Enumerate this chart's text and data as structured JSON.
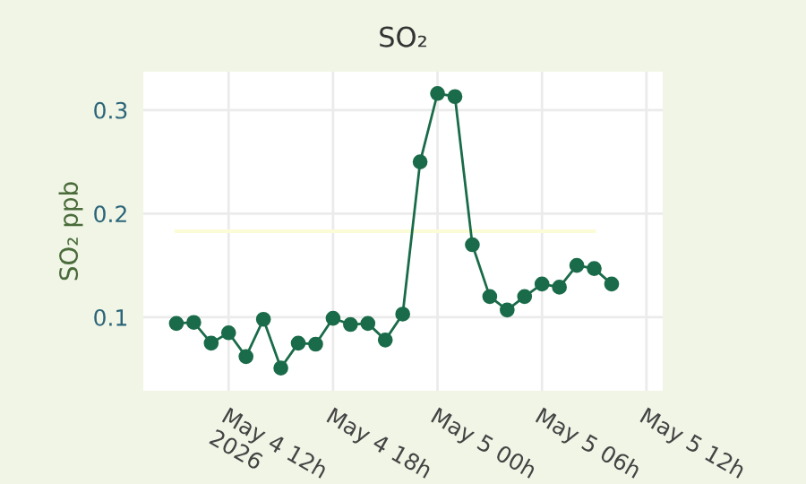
{
  "chart_data": {
    "type": "line",
    "title": "SO₂",
    "ylabel": "SO₂ ppb",
    "x": [
      "2026-05-04T09:00",
      "2026-05-04T10:00",
      "2026-05-04T11:00",
      "2026-05-04T12:00",
      "2026-05-04T13:00",
      "2026-05-04T14:00",
      "2026-05-04T15:00",
      "2026-05-04T16:00",
      "2026-05-04T17:00",
      "2026-05-04T18:00",
      "2026-05-04T19:00",
      "2026-05-04T20:00",
      "2026-05-04T21:00",
      "2026-05-04T22:00",
      "2026-05-04T23:00",
      "2026-05-05T00:00",
      "2026-05-05T01:00",
      "2026-05-05T02:00",
      "2026-05-05T03:00",
      "2026-05-05T04:00",
      "2026-05-05T05:00",
      "2026-05-05T06:00",
      "2026-05-05T07:00",
      "2026-05-05T08:00",
      "2026-05-05T09:00",
      "2026-05-05T10:00"
    ],
    "series": [
      {
        "color": "#1a6b4a",
        "marker": "circle",
        "values": [
          0.094,
          0.095,
          0.075,
          0.085,
          0.062,
          0.098,
          0.051,
          0.075,
          0.074,
          0.099,
          0.093,
          0.094,
          0.078,
          0.103,
          0.25,
          0.316,
          0.313,
          0.17,
          0.12,
          0.107,
          0.12,
          0.132,
          0.129,
          0.15,
          0.147,
          0.132
        ]
      },
      {
        "color": "#fbfbd6",
        "marker": "none",
        "x": [
          "2026-05-04T09:00",
          "2026-05-05T09:00"
        ],
        "values": [
          0.183,
          0.183
        ]
      }
    ],
    "xlim": [
      "2026-05-04T07:06",
      "2026-05-05T12:56"
    ],
    "xticks": [
      {
        "value": "2026-05-04T12:00",
        "label": "May 4 12h\n2026"
      },
      {
        "value": "2026-05-04T18:00",
        "label": "May 4 18h"
      },
      {
        "value": "2026-05-05T00:00",
        "label": "May 5 00h"
      },
      {
        "value": "2026-05-05T06:00",
        "label": "May 5 06h"
      },
      {
        "value": "2026-05-05T12:00",
        "label": "May 5 12h"
      }
    ],
    "ylim": [
      0.029,
      0.337
    ],
    "yticks": [
      0.1,
      0.2,
      0.3
    ],
    "grid": true
  }
}
